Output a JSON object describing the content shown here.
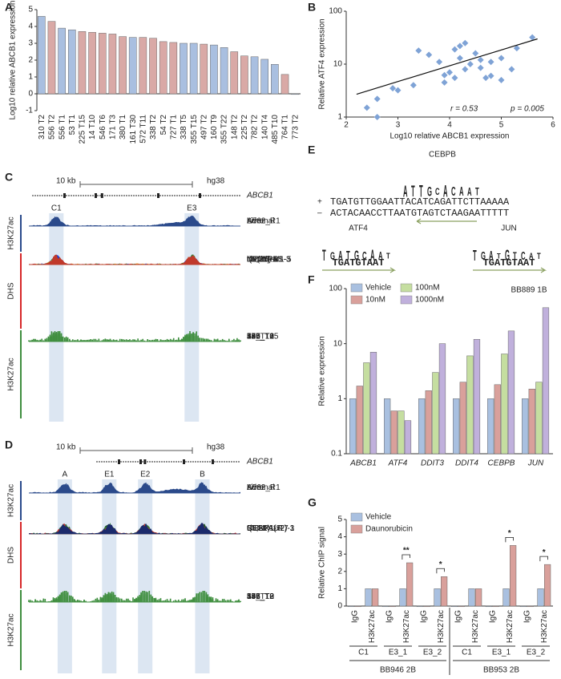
{
  "panel_labels": [
    "A",
    "B",
    "C",
    "D",
    "E",
    "F",
    "G"
  ],
  "chart_data": [
    {
      "type": "bar",
      "y_label": "Log10 relative ABCB1 expression",
      "categories": [
        "310 T2",
        "556 T2",
        "556 T1",
        "53 T1",
        "225 T15",
        "14 T10",
        "546 T6",
        "171 T3",
        "380 T1",
        "161 T30",
        "572 T11",
        "338 T2",
        "54 T2",
        "727 T1",
        "338 T5",
        "355 T15",
        "497 T2",
        "160 T9",
        "355 T22",
        "148 T2",
        "225 T2",
        "782 T2",
        "140 T4",
        "485 T10",
        "764 T1",
        "773 T2"
      ],
      "values": [
        4.6,
        4.3,
        3.9,
        3.8,
        3.7,
        3.65,
        3.6,
        3.55,
        3.4,
        3.35,
        3.35,
        3.3,
        3.1,
        3.05,
        3.0,
        3.0,
        2.95,
        2.9,
        2.75,
        2.5,
        2.25,
        2.2,
        2.05,
        1.75,
        1.15,
        0.0
      ],
      "colors": [
        "#a9bfe0",
        "#d9a9a6",
        "#a9bfe0",
        "#a9bfe0",
        "#d9a9a6",
        "#d9a9a6",
        "#d9a9a6",
        "#d9a9a6",
        "#d9a9a6",
        "#a9bfe0",
        "#d9a9a6",
        "#d9a9a6",
        "#d9a9a6",
        "#d9a9a6",
        "#a9bfe0",
        "#a9bfe0",
        "#d9a9a6",
        "#a9bfe0",
        "#a9bfe0",
        "#d9a9a6",
        "#d9a9a6",
        "#a9bfe0",
        "#a9bfe0",
        "#a9bfe0",
        "#d9a9a6",
        "#a9bfe0"
      ],
      "ylim": [
        -1,
        5
      ],
      "yticks": [
        -1,
        0,
        1,
        2,
        3,
        4,
        5
      ]
    },
    {
      "type": "scatter",
      "x_label": "Log10 relative ABCB1 expression",
      "y_label": "Relative ATF4 expression",
      "x": [
        2.4,
        2.6,
        2.6,
        2.9,
        3.0,
        3.3,
        3.4,
        3.6,
        3.8,
        3.9,
        3.9,
        4.0,
        4.1,
        4.1,
        4.2,
        4.2,
        4.3,
        4.3,
        4.4,
        4.5,
        4.6,
        4.6,
        4.7,
        4.8,
        4.8,
        5.0,
        5.0,
        5.2,
        5.3,
        5.6
      ],
      "y": [
        1.5,
        1.0,
        2.2,
        3.5,
        3.2,
        4,
        18,
        15,
        11,
        4.5,
        6.2,
        7,
        5.5,
        19,
        13,
        22,
        8,
        25,
        10,
        16,
        12,
        8.5,
        5.5,
        6,
        11,
        13,
        5,
        8,
        20,
        32
      ],
      "color": "#7fa3d6",
      "fit": {
        "x": [
          2.2,
          5.7
        ],
        "y": [
          2.7,
          30
        ]
      },
      "xlim": [
        2,
        6
      ],
      "xticks": [
        2,
        3,
        4,
        5,
        6
      ],
      "ylim": [
        1,
        100
      ],
      "yticks": [
        1,
        10,
        100
      ],
      "log_y": true,
      "annotations": [
        "r = 0.53",
        "p = 0.005"
      ]
    },
    {
      "type": "bar",
      "y_label": "Relative expression",
      "annotation": "BB889 1B",
      "categories": [
        "ABCB1",
        "ATF4",
        "DDIT3",
        "DDIT4",
        "CEBPB",
        "JUN"
      ],
      "series": [
        {
          "name": "Vehicle",
          "color": "#a9c0e0",
          "values": [
            1,
            1,
            1,
            1,
            1,
            1
          ]
        },
        {
          "name": "10nM",
          "color": "#d9a09b",
          "values": [
            1.7,
            0.6,
            1.4,
            2.0,
            1.8,
            1.5
          ]
        },
        {
          "name": "100nM",
          "color": "#c5dea0",
          "values": [
            4.5,
            0.6,
            3.0,
            6.0,
            6.5,
            2.0
          ]
        },
        {
          "name": "1000nM",
          "color": "#c0b0dc",
          "values": [
            7.0,
            0.4,
            10,
            12,
            17,
            45
          ]
        }
      ],
      "ylim": [
        0.1,
        100
      ],
      "yticks": [
        0.1,
        1,
        10,
        100
      ],
      "log_y": true
    },
    {
      "type": "bar",
      "y_label": "Relative ChIP signal",
      "categories": [
        "IgG",
        "H3K27ac",
        "IgG",
        "H3K27ac",
        "IgG",
        "H3K27ac",
        "IgG",
        "H3K27ac",
        "IgG",
        "H3K27ac",
        "IgG",
        "H3K27ac"
      ],
      "group_labels": [
        "C1",
        "E3_1",
        "E3_2",
        "C1",
        "E3_1",
        "E3_2"
      ],
      "cell_lines": [
        "BB946 2B",
        "BB953 2B"
      ],
      "series": [
        {
          "name": "Vehicle",
          "color": "#a9c0e0",
          "values": [
            0,
            1,
            0,
            1,
            0,
            1,
            0,
            1,
            0,
            1,
            0,
            1
          ]
        },
        {
          "name": "Daunorubicin",
          "color": "#d9a09b",
          "values": [
            0,
            1.0,
            0,
            2.5,
            0,
            1.7,
            0,
            1.0,
            0,
            3.5,
            0,
            2.4
          ]
        }
      ],
      "significance": [
        null,
        null,
        null,
        "**",
        null,
        "*",
        null,
        null,
        null,
        "*",
        null,
        "*"
      ],
      "ylim": [
        0,
        5
      ],
      "yticks": [
        0,
        1,
        2,
        3,
        4,
        5
      ]
    }
  ],
  "track_panels": [
    {
      "scale_label": "10 kb",
      "genome": "hg38",
      "gene": "ABCB1",
      "regions": [
        "C1",
        "E3"
      ],
      "groups": [
        {
          "name": "H3K27ac",
          "color": "#2b4a8b",
          "tracks": [
            {
              "name": "K562_R1",
              "color": "#2b4a8b"
            },
            {
              "name": "Liver",
              "color": "#2b4a8b"
            },
            {
              "name": "Adrenal",
              "color": "#2b4a8b"
            }
          ]
        },
        {
          "name": "DHS",
          "color": "#d62728",
          "tracks": [
            {
              "name": "t(8;21)-1",
              "color": "#2e7d32"
            },
            {
              "name": "t(8;21)-R1",
              "color": "#2e7d32"
            },
            {
              "name": "NPM/RAS-3",
              "color": "#1f3fd0"
            },
            {
              "name": "inv(16)-3",
              "color": "#e8a020"
            },
            {
              "name": "ITD/NPM1-5",
              "color": "#c0392b"
            },
            {
              "name": "ITD-1",
              "color": "#c0392b"
            }
          ]
        },
        {
          "name": "H3K27ac",
          "color": "#3e8e3e",
          "tracks": [
            {
              "name": "380_T1",
              "color": "#3e8e3e"
            },
            {
              "name": "556_T2",
              "color": "#3e8e3e"
            },
            {
              "name": "14_T10",
              "color": "#3e8e3e"
            },
            {
              "name": "171_T3",
              "color": "#3e8e3e"
            },
            {
              "name": "225_T15",
              "color": "#3e8e3e"
            },
            {
              "name": "497_T2",
              "color": "#3e8e3e"
            },
            {
              "name": "546_T6",
              "color": "#3e8e3e"
            }
          ]
        }
      ]
    },
    {
      "scale_label": "10 kb",
      "genome": "hg38",
      "gene": "ABCB1",
      "regions": [
        "A",
        "E1",
        "E2",
        "B"
      ],
      "groups": [
        {
          "name": "H3K27ac",
          "color": "#2b4a8b",
          "tracks": [
            {
              "name": "K562_R1",
              "color": "#2b4a8b"
            },
            {
              "name": "Liver",
              "color": "#2b4a8b"
            },
            {
              "name": "Adrenal",
              "color": "#2b4a8b"
            }
          ]
        },
        {
          "name": "DHS",
          "color": "#d62728",
          "tracks": [
            {
              "name": "RUNX1-T-7",
              "color": "#1b2a6b"
            },
            {
              "name": "CEBPA(x2)-1",
              "color": "#1f5a2a"
            },
            {
              "name": "t(8;21)-1R",
              "color": "#2e7d32"
            },
            {
              "name": "ITD-1",
              "color": "#c0392b"
            },
            {
              "name": "CEBPA(x2)-3",
              "color": "#1b2a6b"
            }
          ]
        },
        {
          "name": "H3K27ac",
          "color": "#3e8e3e",
          "tracks": [
            {
              "name": "546_T6",
              "color": "#3e8e3e"
            },
            {
              "name": "14_T10",
              "color": "#3e8e3e"
            },
            {
              "name": "338_T2",
              "color": "#3e8e3e"
            },
            {
              "name": "556_T2",
              "color": "#3e8e3e"
            },
            {
              "name": "497_T2",
              "color": "#3e8e3e"
            },
            {
              "name": "171_T3",
              "color": "#3e8e3e"
            }
          ]
        }
      ]
    }
  ],
  "motif_panel": {
    "cebpb": {
      "name": "CEBPB",
      "logo": [
        "A",
        "T",
        "T",
        "G",
        "C",
        "A",
        "C",
        "A",
        "A",
        "T"
      ]
    },
    "strands": [
      {
        "sign": "+",
        "sequence": "TGATGTTGGAATTACATCAGATTCTTAAAAA"
      },
      {
        "sign": "–",
        "sequence": "ACTACAACCTTAATGTAGTCTAAGAATTTTT"
      }
    ],
    "atf4": {
      "name": "ATF4",
      "logo": [
        "T",
        "G",
        "A",
        "T",
        "G",
        "C",
        "A",
        "A",
        "T"
      ],
      "site": "TGATGTAAT"
    },
    "jun": {
      "name": "JUN",
      "logo": [
        "T",
        "G",
        "A",
        "T",
        "G",
        "T",
        "C",
        "A",
        "T"
      ],
      "site": "TGATGTAAT"
    }
  }
}
